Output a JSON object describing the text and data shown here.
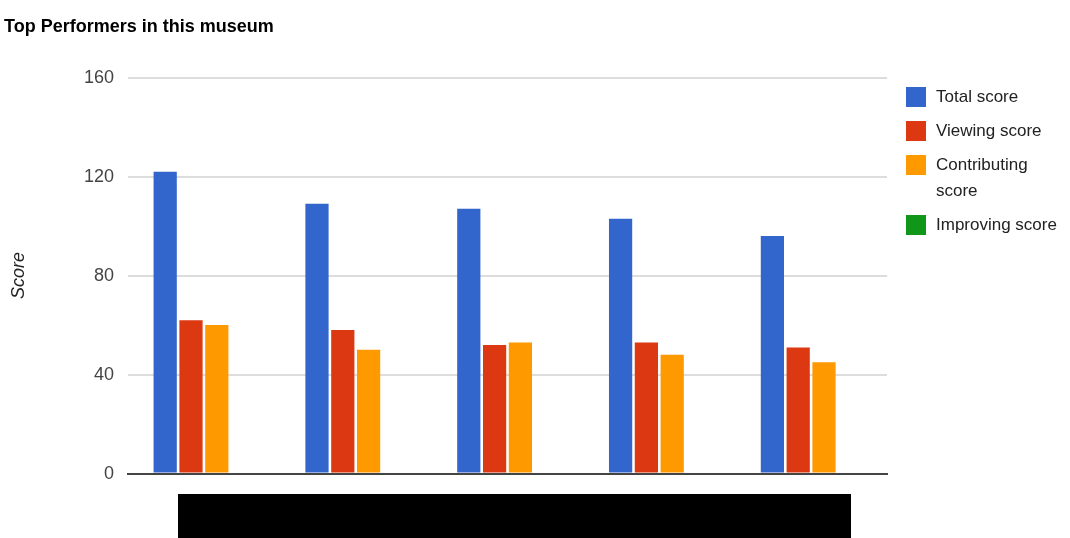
{
  "chart_data": {
    "type": "bar",
    "title": "Top Performers in this museum",
    "ylabel": "Score",
    "categories": [
      null,
      null,
      null,
      null,
      null
    ],
    "series": [
      {
        "name": "Total score",
        "color": "#3366cc",
        "values": [
          122,
          109,
          107,
          103,
          96
        ]
      },
      {
        "name": "Viewing score",
        "color": "#dc3912",
        "values": [
          62,
          58,
          52,
          53,
          51
        ]
      },
      {
        "name": "Contributing score",
        "color": "#ff9900",
        "values": [
          60,
          50,
          53,
          48,
          45
        ]
      },
      {
        "name": "Improving score",
        "color": "#109618",
        "values": [
          0,
          0,
          0,
          0,
          0
        ]
      }
    ],
    "ylim": [
      0,
      160
    ],
    "yticks": [
      0,
      40,
      80,
      120,
      160
    ],
    "grid": "y",
    "legend": "right"
  }
}
